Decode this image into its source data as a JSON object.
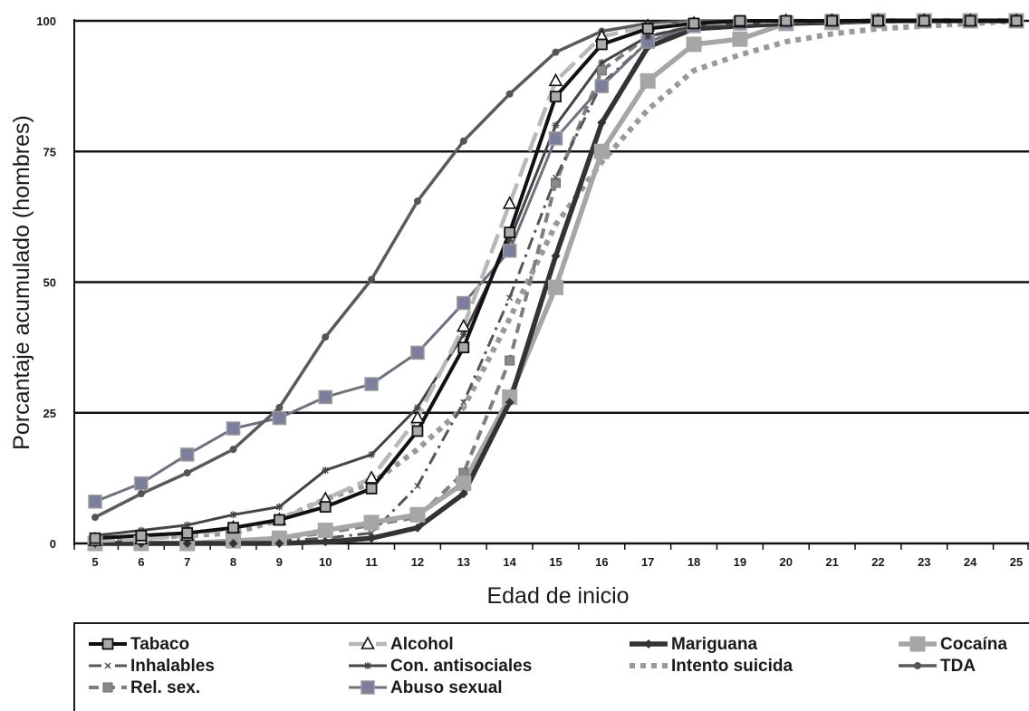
{
  "chart_data": {
    "type": "line",
    "title": "",
    "xlabel": "Edad de inicio",
    "ylabel": "Porcantaje acumulado (hombres)",
    "ylim": [
      0,
      100
    ],
    "yticks": [
      "0",
      "25",
      "50",
      "75",
      "100"
    ],
    "y_tick_values": [
      0,
      25,
      50,
      75,
      100
    ],
    "categories": [
      "5",
      "6",
      "7",
      "8",
      "9",
      "10",
      "11",
      "12",
      "13",
      "14",
      "15",
      "16",
      "17",
      "18",
      "19",
      "20",
      "21",
      "22",
      "23",
      "24",
      "25"
    ],
    "grid": "horizontal",
    "legend_position": "bottom",
    "series": [
      {
        "name": "Tabaco",
        "color": "#111111",
        "dash": "solid",
        "marker": "square",
        "values": [
          1,
          1.5,
          2,
          3,
          4.5,
          7,
          10.5,
          21.5,
          37.5,
          59.5,
          85.5,
          95.5,
          98.5,
          99.5,
          100,
          100,
          100,
          100,
          100,
          100,
          100
        ]
      },
      {
        "name": "Alcohol",
        "color": "#b8b8b8",
        "dash": "long-dash",
        "marker": "triangle",
        "values": [
          0.5,
          0.8,
          1.5,
          3,
          4.5,
          8.5,
          12.5,
          24,
          41.5,
          65,
          88.5,
          97,
          99,
          99.5,
          99.7,
          100,
          100,
          100,
          100,
          100,
          100
        ]
      },
      {
        "name": "Mariguana",
        "color": "#333333",
        "dash": "solid",
        "marker": "diamond",
        "values": [
          0,
          0,
          0,
          0,
          0,
          0.3,
          1,
          3,
          9.5,
          27,
          55,
          80.5,
          95,
          98.5,
          99,
          99.5,
          99.7,
          100,
          100,
          100,
          100
        ]
      },
      {
        "name": "Cocaína",
        "color": "#a6a6a6",
        "dash": "solid",
        "marker": "big-square",
        "values": [
          0,
          0,
          0,
          0.5,
          1,
          2.5,
          4,
          5.5,
          11.5,
          28,
          49,
          75,
          88.5,
          95.5,
          96.5,
          99.5,
          99.7,
          100,
          100,
          100,
          100
        ]
      },
      {
        "name": "Inhalables",
        "color": "#555555",
        "dash": "dash-dot",
        "marker": "cross",
        "values": [
          0,
          0,
          0,
          0,
          0.5,
          1,
          2,
          11,
          27,
          47,
          70,
          88,
          96,
          99,
          99.5,
          99.7,
          100,
          100,
          100,
          100,
          100
        ]
      },
      {
        "name": "Con. antisociales",
        "color": "#444444",
        "dash": "solid",
        "marker": "star",
        "values": [
          1.5,
          2.5,
          3.5,
          5.5,
          7,
          14,
          17,
          26,
          40,
          58,
          80,
          92,
          97,
          99,
          99.5,
          99.7,
          100,
          100,
          100,
          100,
          100
        ]
      },
      {
        "name": "Intento suicida",
        "color": "#999999",
        "dash": "dotted",
        "marker": "none",
        "values": [
          0.5,
          1,
          1.5,
          2,
          4.5,
          8.5,
          11.5,
          18,
          26,
          43,
          61,
          73,
          83,
          90.5,
          93.5,
          96,
          97.5,
          98.5,
          99,
          99.5,
          100
        ]
      },
      {
        "name": "TDA",
        "color": "#5a5a5a",
        "dash": "solid",
        "marker": "circle",
        "values": [
          5,
          9.5,
          13.5,
          18,
          26,
          39.5,
          50.5,
          65.5,
          77,
          86,
          94,
          98,
          99.5,
          100,
          100,
          100,
          100,
          100,
          100,
          100,
          100
        ]
      },
      {
        "name": "Rel. sex.",
        "color": "#7f7f7f",
        "dash": "dashed",
        "marker": "small-square",
        "values": [
          0,
          0,
          0,
          0.5,
          1,
          2,
          3.5,
          5,
          13.5,
          35,
          69,
          90.5,
          97,
          99,
          99.5,
          99.7,
          100,
          100,
          100,
          100,
          100
        ]
      },
      {
        "name": "Abuso sexual",
        "color": "#6f7081",
        "dash": "solid",
        "marker": "blue-square",
        "values": [
          8,
          11.5,
          17,
          22,
          24,
          28,
          30.5,
          36.5,
          46,
          56,
          77.5,
          87.5,
          96,
          99,
          99.5,
          99.7,
          100,
          100,
          100,
          100,
          100
        ]
      }
    ]
  }
}
